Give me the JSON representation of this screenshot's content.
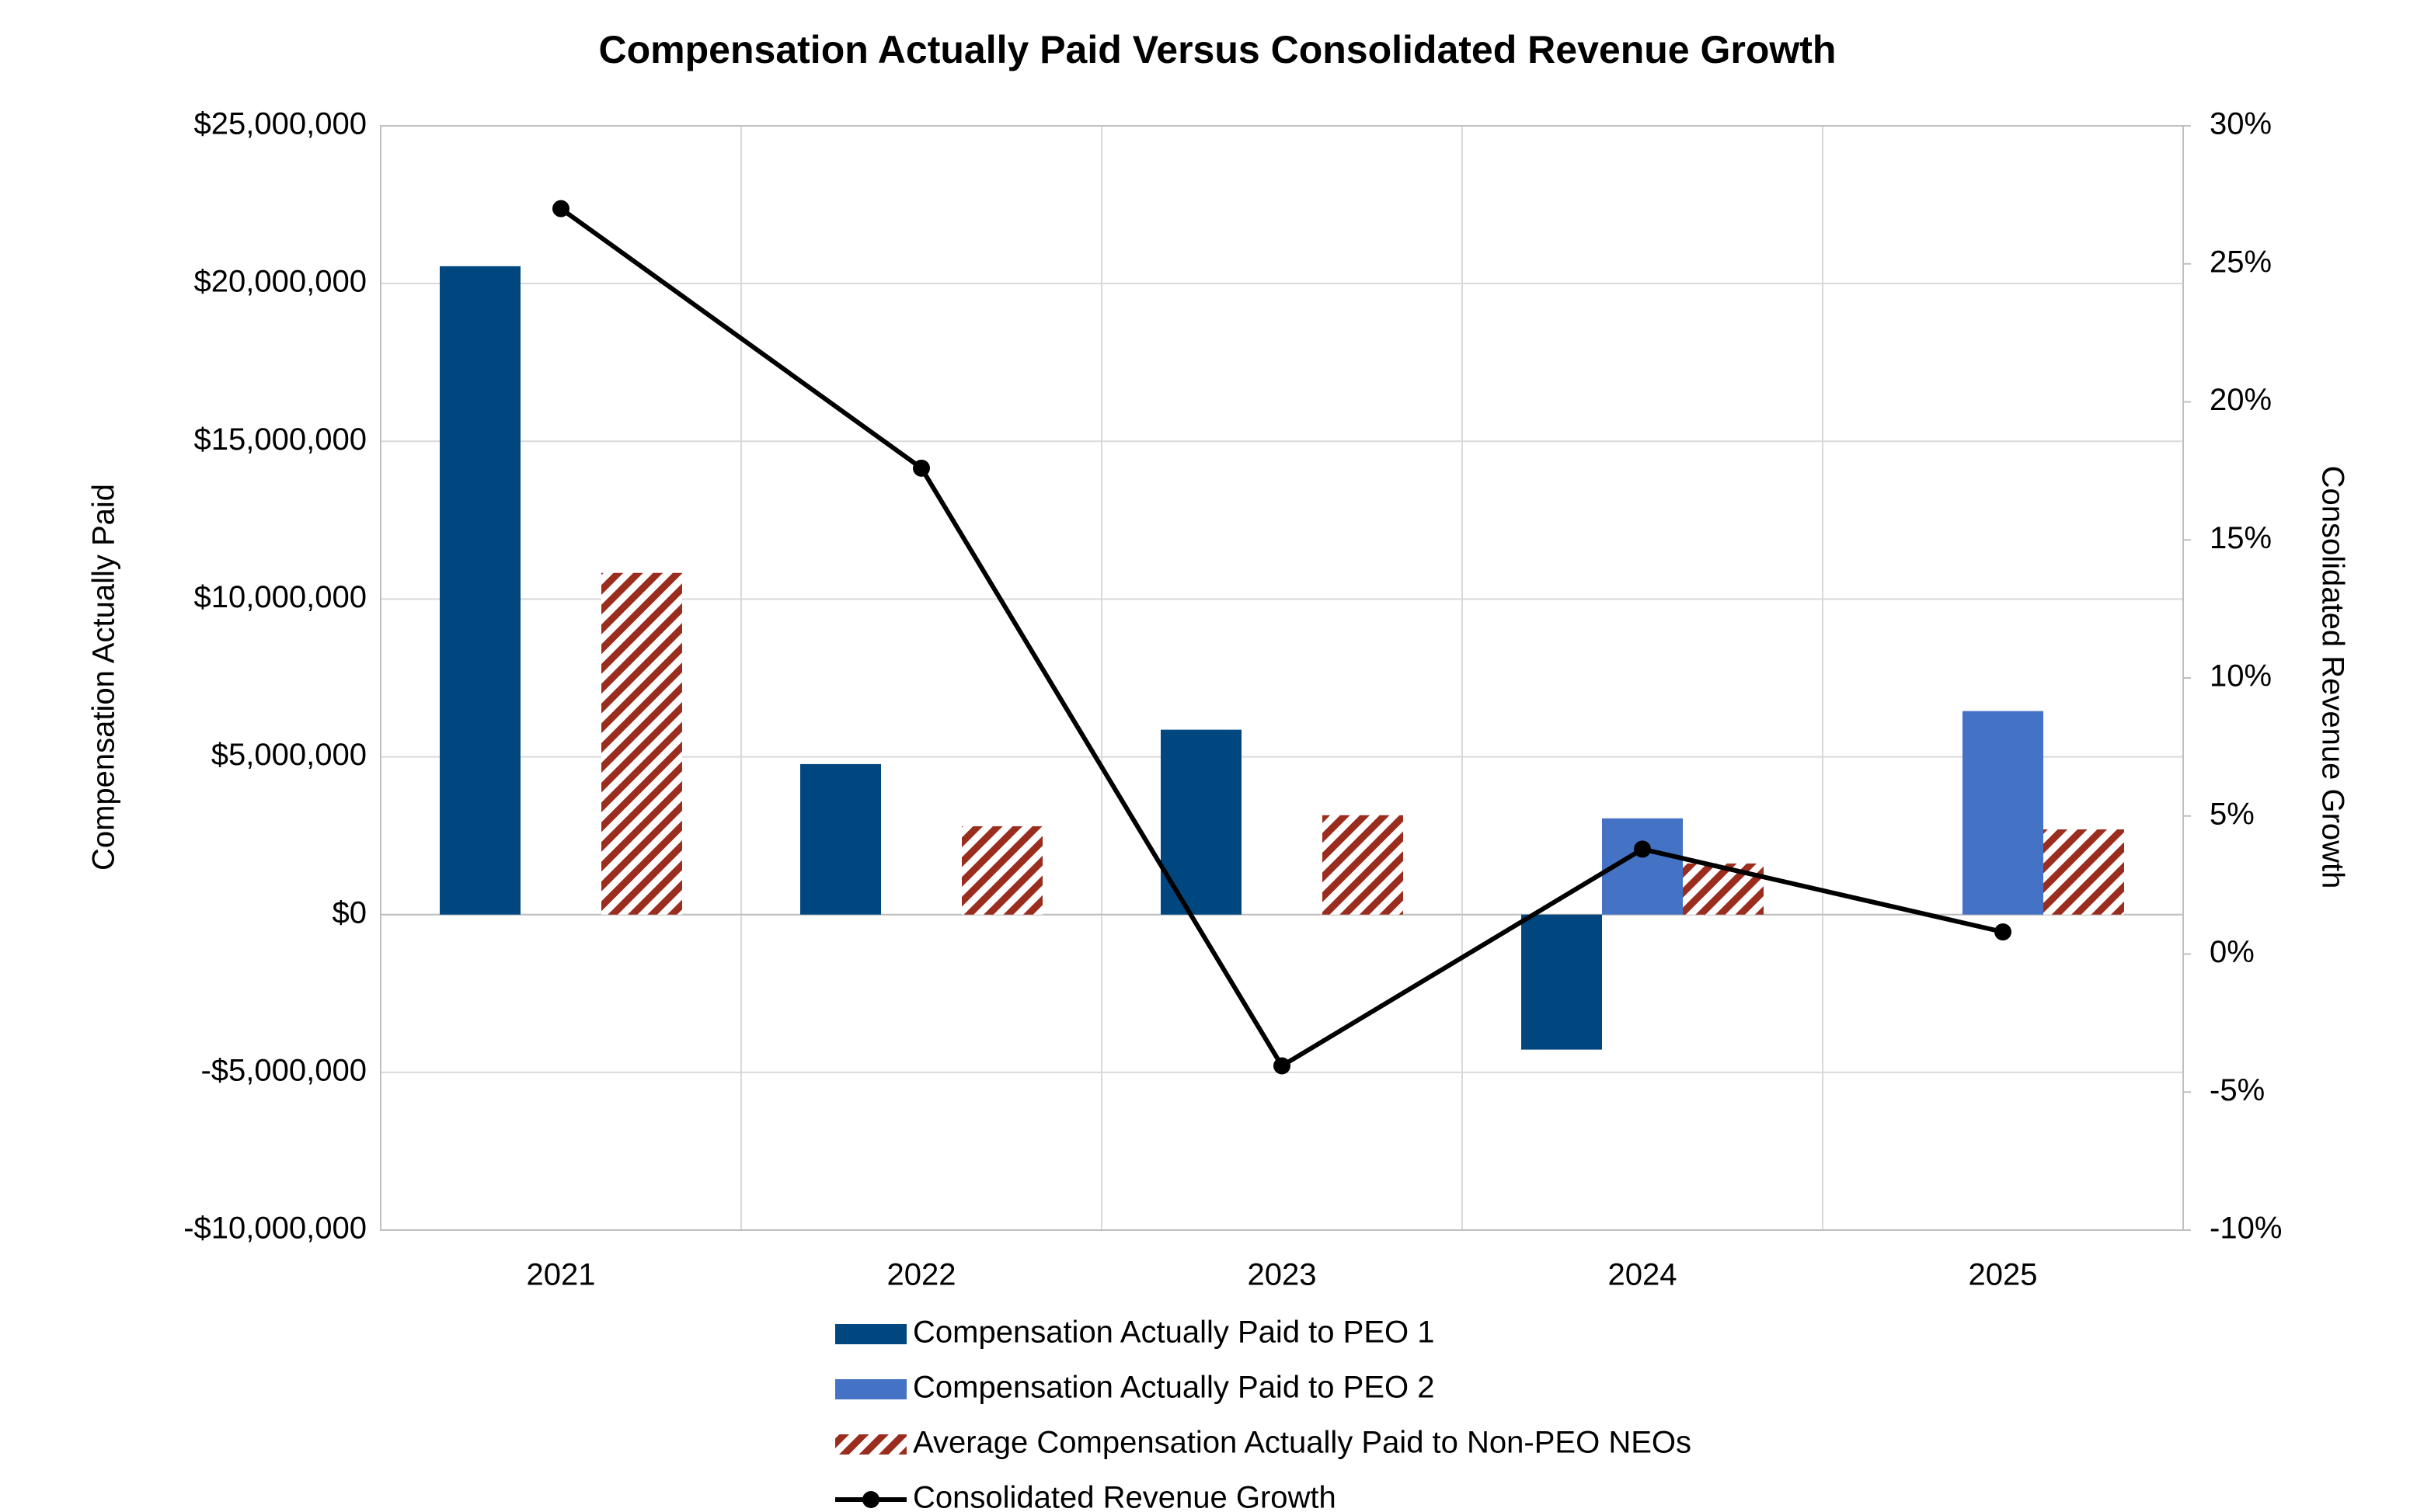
{
  "chart_data": {
    "type": "bar",
    "title": "Compensation Actually Paid Versus Consolidated Revenue Growth",
    "y_label": "Compensation Actually Paid",
    "y2_label": "Consolidated Revenue Growth",
    "categories": [
      "2021",
      "2022",
      "2023",
      "2024",
      "2025"
    ],
    "ylim": [
      -10000000,
      25000000
    ],
    "yticks": [
      {
        "value": -10000000,
        "label": "-$10,000,000"
      },
      {
        "value": -5000000,
        "label": "-$5,000,000"
      },
      {
        "value": 0,
        "label": "$0"
      },
      {
        "value": 5000000,
        "label": "$5,000,000"
      },
      {
        "value": 10000000,
        "label": "$10,000,000"
      },
      {
        "value": 15000000,
        "label": "$15,000,000"
      },
      {
        "value": 20000000,
        "label": "$20,000,000"
      },
      {
        "value": 25000000,
        "label": "$25,000,000"
      }
    ],
    "y2lim": [
      -10,
      30
    ],
    "y2ticks": [
      {
        "value": -10,
        "label": "-10%"
      },
      {
        "value": -5,
        "label": "-5%"
      },
      {
        "value": 0,
        "label": "0%"
      },
      {
        "value": 5,
        "label": "5%"
      },
      {
        "value": 10,
        "label": "10%"
      },
      {
        "value": 15,
        "label": "15%"
      },
      {
        "value": 20,
        "label": "20%"
      },
      {
        "value": 25,
        "label": "25%"
      },
      {
        "value": 30,
        "label": "30%"
      }
    ],
    "grid": true,
    "legend": "bottom",
    "series": [
      {
        "name": "Compensation Actually Paid to PEO 1",
        "type": "bar",
        "color": "#00467f",
        "values": [
          20550000,
          4770000,
          5860000,
          -4280000,
          null
        ]
      },
      {
        "name": "Compensation Actually Paid to PEO 2",
        "type": "bar",
        "color": "#4472c4",
        "values": [
          null,
          null,
          null,
          3050000,
          6450000
        ]
      },
      {
        "name": "Average Compensation Actually Paid to Non-PEO NEOs",
        "type": "bar",
        "pattern": "hatch",
        "color": "#9b2d1f",
        "values": [
          10830000,
          2800000,
          3150000,
          1620000,
          2700000
        ]
      },
      {
        "name": "Consolidated Revenue Growth",
        "type": "line",
        "axis": "y2",
        "color": "#000000",
        "values": [
          27.0,
          17.6,
          -4.05,
          3.8,
          0.8
        ]
      }
    ]
  }
}
